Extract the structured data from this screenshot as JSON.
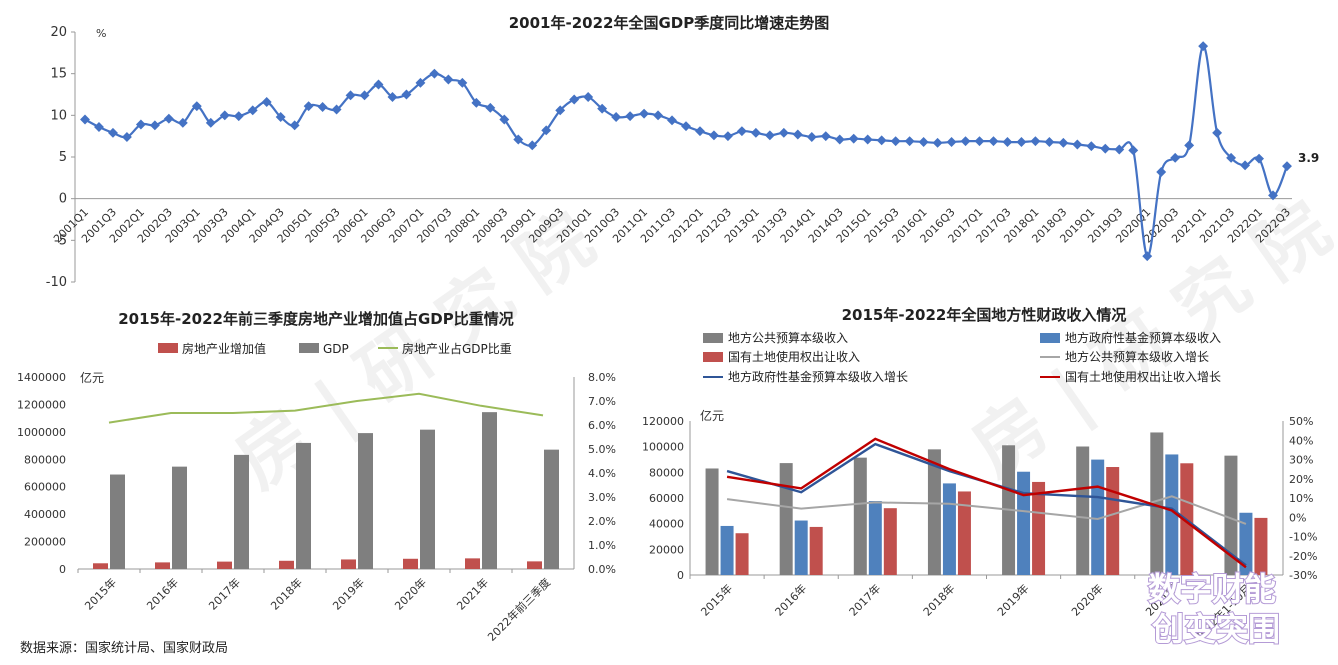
{
  "source": "数据来源：国家统计局、国家财政局",
  "watermark": {
    "logo_line1": "数字财能",
    "logo_line2": "创变突围"
  },
  "chart_data": [
    {
      "type": "line",
      "title": "2001年-2022年全国GDP季度同比增速走势图",
      "unit": "%",
      "ylim": [
        -10,
        20
      ],
      "yticks": [
        -10,
        -5,
        0,
        5,
        10,
        15,
        20
      ],
      "end_label": "3.9",
      "color": "#4472c4",
      "x": [
        "2001Q1",
        "2001Q2",
        "2001Q3",
        "2001Q4",
        "2002Q1",
        "2002Q2",
        "2002Q3",
        "2002Q4",
        "2003Q1",
        "2003Q2",
        "2003Q3",
        "2003Q4",
        "2004Q1",
        "2004Q2",
        "2004Q3",
        "2004Q4",
        "2005Q1",
        "2005Q2",
        "2005Q3",
        "2005Q4",
        "2006Q1",
        "2006Q2",
        "2006Q3",
        "2006Q4",
        "2007Q1",
        "2007Q2",
        "2007Q3",
        "2007Q4",
        "2008Q1",
        "2008Q2",
        "2008Q3",
        "2008Q4",
        "2009Q1",
        "2009Q2",
        "2009Q3",
        "2009Q4",
        "2010Q1",
        "2010Q2",
        "2010Q3",
        "2010Q4",
        "2011Q1",
        "2011Q2",
        "2011Q3",
        "2011Q4",
        "2012Q1",
        "2012Q2",
        "2012Q3",
        "2012Q4",
        "2013Q1",
        "2013Q2",
        "2013Q3",
        "2013Q4",
        "2014Q1",
        "2014Q2",
        "2014Q3",
        "2014Q4",
        "2015Q1",
        "2015Q2",
        "2015Q3",
        "2015Q4",
        "2016Q1",
        "2016Q2",
        "2016Q3",
        "2016Q4",
        "2017Q1",
        "2017Q2",
        "2017Q3",
        "2017Q4",
        "2018Q1",
        "2018Q2",
        "2018Q3",
        "2018Q4",
        "2019Q1",
        "2019Q2",
        "2019Q3",
        "2019Q4",
        "2020Q1",
        "2020Q2",
        "2020Q3",
        "2020Q4",
        "2021Q1",
        "2021Q2",
        "2021Q3",
        "2021Q4",
        "2022Q1",
        "2022Q2",
        "2022Q3"
      ],
      "x_ticklabels": [
        "2001Q1",
        "2001Q3",
        "2002Q1",
        "2002Q3",
        "2003Q1",
        "2003Q3",
        "2004Q1",
        "2004Q3",
        "2005Q1",
        "2005Q3",
        "2006Q1",
        "2006Q3",
        "2007Q1",
        "2007Q3",
        "2008Q1",
        "2008Q3",
        "2009Q1",
        "2009Q3",
        "2010Q1",
        "2010Q3",
        "2011Q1",
        "2011Q3",
        "2012Q1",
        "2012Q3",
        "2013Q1",
        "2013Q3",
        "2014Q1",
        "2014Q3",
        "2015Q1",
        "2015Q3",
        "2016Q1",
        "2016Q3",
        "2017Q1",
        "2017Q3",
        "2018Q1",
        "2018Q3",
        "2019Q1",
        "2019Q3",
        "2020Q1",
        "2020Q3",
        "2021Q1",
        "2021Q3",
        "2022Q1",
        "2022Q3"
      ],
      "values": [
        9.5,
        8.6,
        7.9,
        7.4,
        8.9,
        8.8,
        9.6,
        9.1,
        11.1,
        9.1,
        10.0,
        9.9,
        10.6,
        11.6,
        9.8,
        8.8,
        11.1,
        11.0,
        10.7,
        12.4,
        12.4,
        13.7,
        12.2,
        12.5,
        13.9,
        15.0,
        14.3,
        13.9,
        11.5,
        10.9,
        9.5,
        7.1,
        6.4,
        8.2,
        10.6,
        11.9,
        12.2,
        10.8,
        9.8,
        9.9,
        10.2,
        10.0,
        9.4,
        8.7,
        8.1,
        7.6,
        7.5,
        8.1,
        7.9,
        7.6,
        7.9,
        7.7,
        7.4,
        7.5,
        7.1,
        7.2,
        7.1,
        7.0,
        6.9,
        6.9,
        6.8,
        6.7,
        6.8,
        6.9,
        6.9,
        6.9,
        6.8,
        6.8,
        6.9,
        6.8,
        6.7,
        6.5,
        6.3,
        6.0,
        5.9,
        5.8,
        -6.9,
        3.2,
        4.9,
        6.4,
        18.3,
        7.9,
        4.9,
        4.0,
        4.8,
        0.4,
        3.9
      ]
    },
    {
      "type": "bar",
      "title": "2015年-2022年前三季度房地产业增加值占GDP比重情况",
      "ylabel_left": "亿元",
      "categories": [
        "2015年",
        "2016年",
        "2017年",
        "2018年",
        "2019年",
        "2020年",
        "2021年",
        "2022年前三季度"
      ],
      "ylim_left": [
        0,
        1400000
      ],
      "yticks_left": [
        "0",
        "200000",
        "400000",
        "600000",
        "800000",
        "1000000",
        "1200000",
        "1400000"
      ],
      "ylim_right": [
        0,
        8
      ],
      "yticks_right": [
        "0.0%",
        "1.0%",
        "2.0%",
        "3.0%",
        "4.0%",
        "5.0%",
        "6.0%",
        "7.0%",
        "8.0%"
      ],
      "series": [
        {
          "name": "房地产业增加值",
          "kind": "bar",
          "axis": "left",
          "color": "#c0504d",
          "values": [
            41701,
            48191,
            53850,
            59846,
            69631,
            74553,
            77561,
            55630
          ]
        },
        {
          "name": "GDP",
          "kind": "bar",
          "axis": "left",
          "color": "#7f7f7f",
          "values": [
            688858,
            746395,
            832036,
            919281,
            990865,
            1015986,
            1143670,
            870269
          ]
        },
        {
          "name": "房地产业占GDP比重",
          "kind": "line",
          "axis": "right",
          "color": "#9bbb59",
          "values": [
            6.1,
            6.5,
            6.5,
            6.6,
            7.0,
            7.3,
            6.8,
            6.4
          ]
        }
      ]
    },
    {
      "type": "bar",
      "title": "2015年-2022年全国地方性财政收入情况",
      "ylabel_left": "亿元",
      "categories": [
        "2015年",
        "2016年",
        "2017年",
        "2018年",
        "2019年",
        "2020年",
        "2021年",
        "2022年1-10月"
      ],
      "ylim_left": [
        0,
        120000
      ],
      "yticks_left": [
        "0",
        "20000",
        "40000",
        "60000",
        "80000",
        "100000",
        "120000"
      ],
      "ylim_right": [
        -30,
        50
      ],
      "yticks_right": [
        "-30%",
        "-20%",
        "-10%",
        "0%",
        "10%",
        "20%",
        "30%",
        "40%",
        "50%"
      ],
      "series": [
        {
          "name": "地方公共预算本级收入",
          "kind": "bar",
          "axis": "left",
          "color": "#808080",
          "values": [
            83002,
            87195,
            91448,
            97905,
            101077,
            100124,
            111077,
            93000
          ]
        },
        {
          "name": "地方政府性基金预算本级收入",
          "kind": "bar",
          "axis": "left",
          "color": "#4f81bd",
          "values": [
            38218,
            42441,
            57637,
            71372,
            80476,
            89927,
            93936,
            48500
          ]
        },
        {
          "name": "国有土地使用权出让收入",
          "kind": "bar",
          "axis": "left",
          "color": "#c0504d",
          "values": [
            32547,
            37457,
            52059,
            65096,
            72517,
            84142,
            87051,
            44500
          ]
        },
        {
          "name": "地方公共预算本级收入增长",
          "kind": "line",
          "axis": "right",
          "color": "#a6a6a6",
          "values": [
            9.4,
            4.5,
            7.7,
            7.0,
            3.2,
            -0.9,
            10.9,
            -3.5
          ]
        },
        {
          "name": "地方政府性基金预算本级收入增长",
          "kind": "line",
          "axis": "right",
          "color": "#2f5597",
          "values": [
            24.0,
            13.0,
            38.0,
            24.0,
            12.5,
            10.5,
            4.5,
            -25.0
          ]
        },
        {
          "name": "国有土地使用权出让收入增长",
          "kind": "line",
          "axis": "right",
          "color": "#c00000",
          "values": [
            21.0,
            15.0,
            40.7,
            25.0,
            11.5,
            15.9,
            3.5,
            -26.0
          ]
        }
      ]
    }
  ]
}
